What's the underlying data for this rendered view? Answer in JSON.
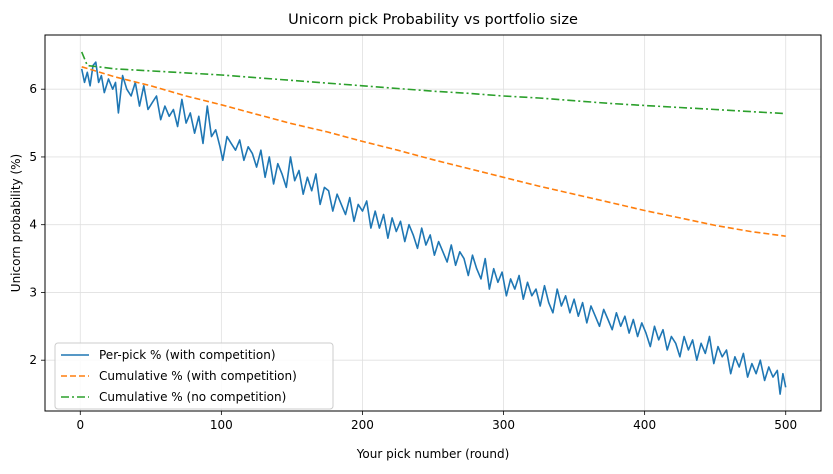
{
  "chart_data": {
    "type": "line",
    "title": "Unicorn pick Probability vs portfolio size",
    "xlabel": "Your pick number (round)",
    "ylabel": "Unicorn probability (%)",
    "xlim": [
      -25,
      525
    ],
    "ylim": [
      1.25,
      6.8
    ],
    "x_ticks": [
      0,
      100,
      200,
      300,
      400,
      500
    ],
    "y_ticks": [
      2,
      3,
      4,
      5,
      6
    ],
    "grid": true,
    "legend_position": "lower-left",
    "series": [
      {
        "name": "Per-pick % (with competition)",
        "style": "solid",
        "color": "#1f77b4",
        "points": [
          [
            1,
            6.3
          ],
          [
            3,
            6.1
          ],
          [
            5,
            6.25
          ],
          [
            7,
            6.05
          ],
          [
            9,
            6.35
          ],
          [
            11,
            6.4
          ],
          [
            13,
            6.1
          ],
          [
            15,
            6.2
          ],
          [
            17,
            5.95
          ],
          [
            20,
            6.15
          ],
          [
            23,
            6.0
          ],
          [
            25,
            6.1
          ],
          [
            27,
            5.65
          ],
          [
            30,
            6.2
          ],
          [
            33,
            6.0
          ],
          [
            36,
            5.9
          ],
          [
            39,
            6.1
          ],
          [
            42,
            5.75
          ],
          [
            45,
            6.05
          ],
          [
            48,
            5.7
          ],
          [
            51,
            5.8
          ],
          [
            54,
            5.9
          ],
          [
            57,
            5.55
          ],
          [
            60,
            5.75
          ],
          [
            63,
            5.6
          ],
          [
            66,
            5.7
          ],
          [
            69,
            5.45
          ],
          [
            72,
            5.85
          ],
          [
            75,
            5.5
          ],
          [
            78,
            5.65
          ],
          [
            81,
            5.35
          ],
          [
            84,
            5.6
          ],
          [
            87,
            5.2
          ],
          [
            90,
            5.75
          ],
          [
            93,
            5.3
          ],
          [
            96,
            5.4
          ],
          [
            99,
            5.15
          ],
          [
            101,
            4.95
          ],
          [
            104,
            5.3
          ],
          [
            107,
            5.2
          ],
          [
            110,
            5.1
          ],
          [
            113,
            5.25
          ],
          [
            116,
            4.95
          ],
          [
            119,
            5.15
          ],
          [
            122,
            5.05
          ],
          [
            125,
            4.85
          ],
          [
            128,
            5.1
          ],
          [
            131,
            4.7
          ],
          [
            134,
            5.0
          ],
          [
            137,
            4.6
          ],
          [
            140,
            4.9
          ],
          [
            143,
            4.75
          ],
          [
            146,
            4.55
          ],
          [
            149,
            5.0
          ],
          [
            152,
            4.65
          ],
          [
            155,
            4.8
          ],
          [
            158,
            4.45
          ],
          [
            161,
            4.7
          ],
          [
            164,
            4.5
          ],
          [
            167,
            4.75
          ],
          [
            170,
            4.3
          ],
          [
            173,
            4.55
          ],
          [
            176,
            4.5
          ],
          [
            179,
            4.2
          ],
          [
            182,
            4.45
          ],
          [
            185,
            4.3
          ],
          [
            188,
            4.15
          ],
          [
            191,
            4.4
          ],
          [
            194,
            4.05
          ],
          [
            197,
            4.3
          ],
          [
            200,
            4.2
          ],
          [
            203,
            4.35
          ],
          [
            206,
            3.95
          ],
          [
            209,
            4.2
          ],
          [
            212,
            3.95
          ],
          [
            215,
            4.15
          ],
          [
            218,
            3.8
          ],
          [
            221,
            4.1
          ],
          [
            224,
            3.9
          ],
          [
            227,
            4.05
          ],
          [
            230,
            3.75
          ],
          [
            233,
            4.0
          ],
          [
            236,
            3.85
          ],
          [
            239,
            3.65
          ],
          [
            242,
            3.95
          ],
          [
            245,
            3.7
          ],
          [
            248,
            3.85
          ],
          [
            251,
            3.55
          ],
          [
            254,
            3.75
          ],
          [
            257,
            3.6
          ],
          [
            260,
            3.45
          ],
          [
            263,
            3.7
          ],
          [
            266,
            3.4
          ],
          [
            269,
            3.6
          ],
          [
            272,
            3.5
          ],
          [
            275,
            3.25
          ],
          [
            278,
            3.55
          ],
          [
            281,
            3.35
          ],
          [
            284,
            3.2
          ],
          [
            287,
            3.5
          ],
          [
            290,
            3.05
          ],
          [
            293,
            3.35
          ],
          [
            296,
            3.15
          ],
          [
            299,
            3.3
          ],
          [
            302,
            2.95
          ],
          [
            305,
            3.2
          ],
          [
            308,
            3.05
          ],
          [
            311,
            3.25
          ],
          [
            314,
            2.9
          ],
          [
            317,
            3.15
          ],
          [
            320,
            2.95
          ],
          [
            323,
            3.05
          ],
          [
            326,
            2.8
          ],
          [
            329,
            3.1
          ],
          [
            332,
            2.85
          ],
          [
            335,
            2.7
          ],
          [
            338,
            3.05
          ],
          [
            341,
            2.8
          ],
          [
            344,
            2.95
          ],
          [
            347,
            2.7
          ],
          [
            350,
            2.9
          ],
          [
            353,
            2.65
          ],
          [
            356,
            2.85
          ],
          [
            359,
            2.55
          ],
          [
            362,
            2.8
          ],
          [
            365,
            2.65
          ],
          [
            368,
            2.5
          ],
          [
            371,
            2.75
          ],
          [
            374,
            2.6
          ],
          [
            377,
            2.45
          ],
          [
            380,
            2.7
          ],
          [
            383,
            2.5
          ],
          [
            386,
            2.65
          ],
          [
            389,
            2.4
          ],
          [
            392,
            2.6
          ],
          [
            395,
            2.35
          ],
          [
            398,
            2.55
          ],
          [
            401,
            2.4
          ],
          [
            404,
            2.2
          ],
          [
            407,
            2.5
          ],
          [
            410,
            2.3
          ],
          [
            413,
            2.45
          ],
          [
            416,
            2.15
          ],
          [
            419,
            2.35
          ],
          [
            422,
            2.25
          ],
          [
            425,
            2.05
          ],
          [
            428,
            2.35
          ],
          [
            431,
            2.15
          ],
          [
            434,
            2.3
          ],
          [
            437,
            2.0
          ],
          [
            440,
            2.25
          ],
          [
            443,
            2.1
          ],
          [
            446,
            2.35
          ],
          [
            449,
            1.95
          ],
          [
            452,
            2.2
          ],
          [
            455,
            2.05
          ],
          [
            458,
            2.15
          ],
          [
            461,
            1.8
          ],
          [
            464,
            2.05
          ],
          [
            467,
            1.9
          ],
          [
            470,
            2.1
          ],
          [
            473,
            1.75
          ],
          [
            476,
            1.95
          ],
          [
            479,
            1.8
          ],
          [
            482,
            2.0
          ],
          [
            485,
            1.7
          ],
          [
            488,
            1.9
          ],
          [
            491,
            1.75
          ],
          [
            494,
            1.85
          ],
          [
            496,
            1.5
          ],
          [
            498,
            1.8
          ],
          [
            500,
            1.6
          ]
        ]
      },
      {
        "name": "Cumulative % (with competition)",
        "style": "dashed",
        "color": "#ff7f0e",
        "points": [
          [
            1,
            6.33
          ],
          [
            25,
            6.18
          ],
          [
            50,
            6.05
          ],
          [
            75,
            5.9
          ],
          [
            100,
            5.77
          ],
          [
            125,
            5.63
          ],
          [
            150,
            5.49
          ],
          [
            175,
            5.37
          ],
          [
            200,
            5.23
          ],
          [
            225,
            5.1
          ],
          [
            250,
            4.96
          ],
          [
            275,
            4.83
          ],
          [
            300,
            4.7
          ],
          [
            325,
            4.57
          ],
          [
            350,
            4.45
          ],
          [
            375,
            4.33
          ],
          [
            400,
            4.21
          ],
          [
            425,
            4.1
          ],
          [
            450,
            3.99
          ],
          [
            475,
            3.9
          ],
          [
            500,
            3.83
          ]
        ]
      },
      {
        "name": "Cumulative % (no competition)",
        "style": "dashdot",
        "color": "#2ca02c",
        "points": [
          [
            1,
            6.55
          ],
          [
            5,
            6.35
          ],
          [
            25,
            6.3
          ],
          [
            50,
            6.27
          ],
          [
            75,
            6.24
          ],
          [
            100,
            6.21
          ],
          [
            125,
            6.17
          ],
          [
            150,
            6.13
          ],
          [
            175,
            6.09
          ],
          [
            200,
            6.05
          ],
          [
            225,
            6.01
          ],
          [
            250,
            5.97
          ],
          [
            275,
            5.94
          ],
          [
            300,
            5.9
          ],
          [
            325,
            5.87
          ],
          [
            350,
            5.83
          ],
          [
            375,
            5.79
          ],
          [
            400,
            5.76
          ],
          [
            425,
            5.73
          ],
          [
            450,
            5.7
          ],
          [
            475,
            5.67
          ],
          [
            500,
            5.64
          ]
        ]
      }
    ]
  }
}
